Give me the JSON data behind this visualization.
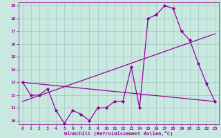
{
  "xlabel": "Windchill (Refroidissement éolien,°C)",
  "bg_color": "#c8e8e0",
  "line_color": "#990099",
  "grid_color": "#a0c8c0",
  "x": [
    0,
    1,
    2,
    3,
    4,
    5,
    6,
    7,
    8,
    9,
    10,
    11,
    12,
    13,
    14,
    15,
    16,
    17,
    18,
    19,
    20,
    21,
    22,
    23
  ],
  "series1": [
    13,
    12,
    12,
    12.5,
    10.8,
    9.8,
    10.8,
    10.5,
    10.0,
    11.0,
    11.0,
    11.5,
    11.5,
    14.2,
    11.0,
    18.0,
    18.3,
    19.0,
    18.8,
    17.0,
    16.3,
    14.5,
    12.9,
    11.5
  ],
  "line2_x": [
    0,
    23
  ],
  "line2_y": [
    11.5,
    16.8
  ],
  "line3_x": [
    0,
    23
  ],
  "line3_y": [
    13.0,
    11.5
  ],
  "ylim_min": 9.7,
  "ylim_max": 19.3,
  "xlim_min": -0.5,
  "xlim_max": 23.5,
  "yticks": [
    10,
    11,
    12,
    13,
    14,
    15,
    16,
    17,
    18,
    19
  ],
  "xticks": [
    0,
    1,
    2,
    3,
    4,
    5,
    6,
    7,
    8,
    9,
    10,
    11,
    12,
    13,
    14,
    15,
    16,
    17,
    18,
    19,
    20,
    21,
    22,
    23
  ]
}
